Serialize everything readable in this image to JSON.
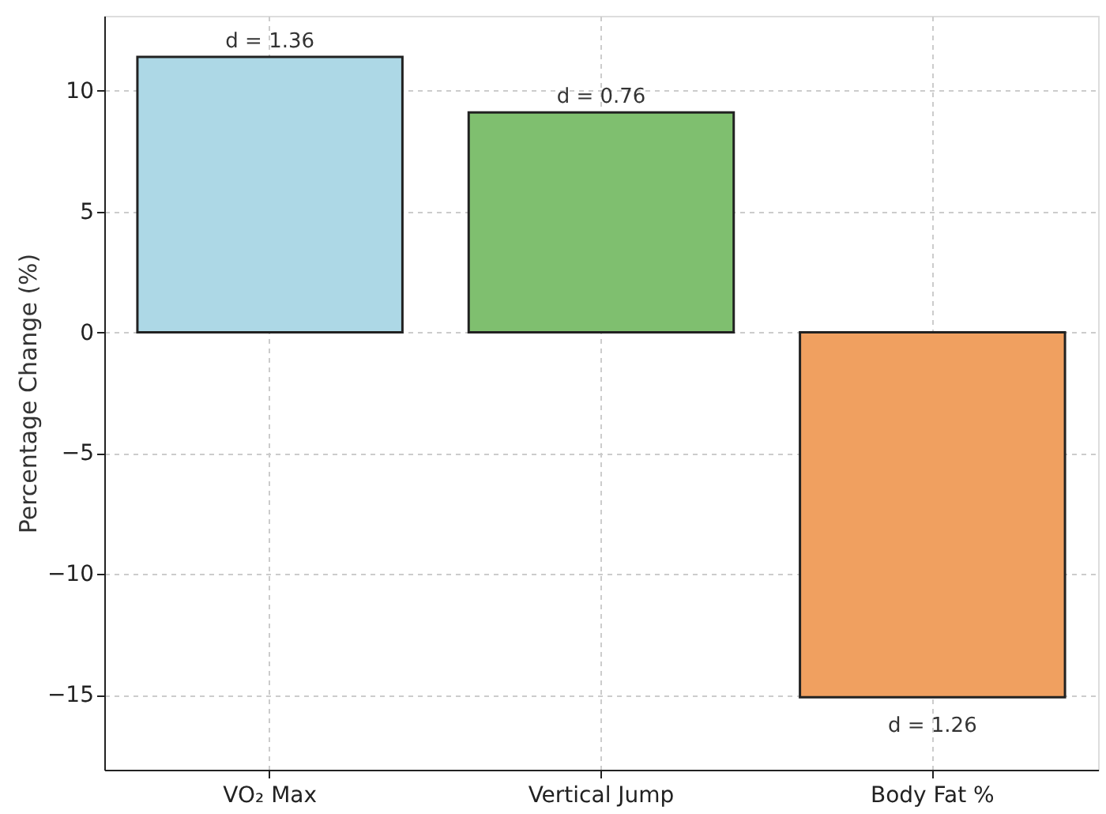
{
  "chart_data": {
    "type": "bar",
    "ylabel": "Percentage Change (%)",
    "categories": [
      "VO₂ Max",
      "Vertical Jump",
      "Body Fat %"
    ],
    "values": [
      11.4,
      9.1,
      -15.1
    ],
    "colors": [
      "#add8e6",
      "#7fbf6f",
      "#f0a060"
    ],
    "ylim": [
      -18.1,
      13.1
    ],
    "yticks": [
      -15,
      -10,
      -5,
      0,
      5,
      10
    ],
    "grid": true,
    "annotations": [
      {
        "text": "d = 1.36",
        "x": "VO₂ Max",
        "y": 11.4
      },
      {
        "text": "d = 0.76",
        "x": "Vertical Jump",
        "y": 9.1
      },
      {
        "text": "d = 1.26",
        "x": "Body Fat %",
        "y": -15.1
      }
    ]
  }
}
